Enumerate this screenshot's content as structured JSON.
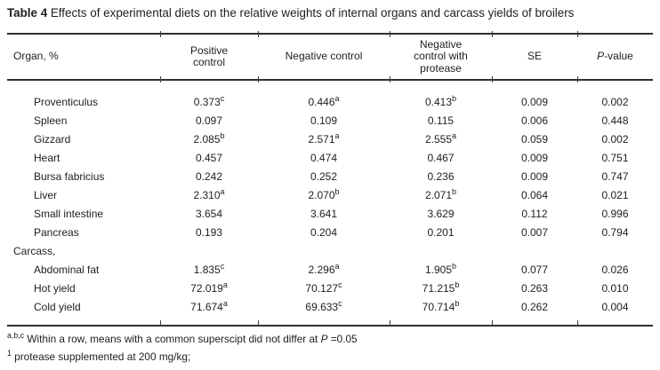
{
  "title": {
    "bold": "Table 4",
    "rest": " Effects of experimental diets on the relative weights of internal organs and carcass yields of broilers"
  },
  "table": {
    "columns": [
      {
        "label": "Organ, %"
      },
      {
        "label": "Positive control"
      },
      {
        "label": "Negative control"
      },
      {
        "label": "Negative control with protease"
      },
      {
        "label": "SE"
      },
      {
        "italic": "P",
        "rest": "-value"
      }
    ],
    "rows": [
      {
        "label": "Proventiculus",
        "cells": [
          {
            "v": "0.373",
            "s": "c"
          },
          {
            "v": "0.446",
            "s": "a"
          },
          {
            "v": "0.413",
            "s": "b"
          },
          {
            "v": "0.009"
          },
          {
            "v": "0.002"
          }
        ]
      },
      {
        "label": "Spleen",
        "cells": [
          {
            "v": "0.097"
          },
          {
            "v": "0.109"
          },
          {
            "v": "0.115"
          },
          {
            "v": "0.006"
          },
          {
            "v": "0.448"
          }
        ]
      },
      {
        "label": "Gizzard",
        "cells": [
          {
            "v": "2.085",
            "s": "b"
          },
          {
            "v": "2.571",
            "s": "a"
          },
          {
            "v": "2.555",
            "s": "a"
          },
          {
            "v": "0.059"
          },
          {
            "v": "0.002"
          }
        ]
      },
      {
        "label": "Heart",
        "cells": [
          {
            "v": "0.457"
          },
          {
            "v": "0.474"
          },
          {
            "v": "0.467"
          },
          {
            "v": "0.009"
          },
          {
            "v": "0.751"
          }
        ]
      },
      {
        "label": "Bursa fabricius",
        "cells": [
          {
            "v": "0.242"
          },
          {
            "v": "0.252"
          },
          {
            "v": "0.236"
          },
          {
            "v": "0.009"
          },
          {
            "v": "0.747"
          }
        ]
      },
      {
        "label": "Liver",
        "cells": [
          {
            "v": "2.310",
            "s": "a"
          },
          {
            "v": "2.070",
            "s": "b"
          },
          {
            "v": "2.071",
            "s": "b"
          },
          {
            "v": "0.064"
          },
          {
            "v": "0.021"
          }
        ]
      },
      {
        "label": "Small intestine",
        "cells": [
          {
            "v": "3.654"
          },
          {
            "v": "3.641"
          },
          {
            "v": "3.629"
          },
          {
            "v": "0.112"
          },
          {
            "v": "0.996"
          }
        ]
      },
      {
        "label": "Pancreas",
        "cells": [
          {
            "v": "0.193"
          },
          {
            "v": "0.204"
          },
          {
            "v": "0.201"
          },
          {
            "v": "0.007"
          },
          {
            "v": "0.794"
          }
        ]
      },
      {
        "label": "Carcass,",
        "section": true,
        "cells": [
          {},
          {},
          {},
          {},
          {}
        ]
      },
      {
        "label": "Abdominal fat",
        "cells": [
          {
            "v": "1.835",
            "s": "c"
          },
          {
            "v": "2.296",
            "s": "a"
          },
          {
            "v": "1.905",
            "s": "b"
          },
          {
            "v": "0.077"
          },
          {
            "v": "0.026"
          }
        ]
      },
      {
        "label": "Hot yield",
        "cells": [
          {
            "v": "72.019",
            "s": "a"
          },
          {
            "v": "70.127",
            "s": "c"
          },
          {
            "v": "71.215",
            "s": "b"
          },
          {
            "v": "0.263"
          },
          {
            "v": "0.010"
          }
        ]
      },
      {
        "label": "Cold yield",
        "cells": [
          {
            "v": "71.674",
            "s": "a"
          },
          {
            "v": "69.633",
            "s": "c"
          },
          {
            "v": "70.714",
            "s": "b"
          },
          {
            "v": "0.262"
          },
          {
            "v": "0.004"
          }
        ]
      }
    ]
  },
  "footnotes": [
    {
      "sup": "a,b,c",
      "text": " Within a row, means with a common superscipt did not differ at ",
      "italic": "P",
      "post": " =0.05"
    },
    {
      "sup": "1",
      "text": " protease supplemented at 200 mg/kg;"
    }
  ]
}
